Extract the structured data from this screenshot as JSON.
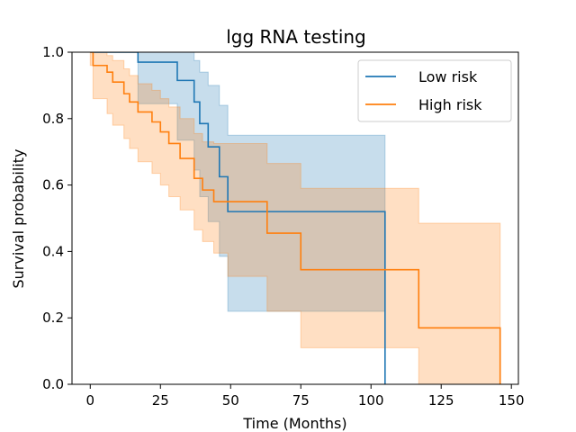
{
  "chart_data": {
    "type": "line",
    "title": "lgg RNA testing",
    "xlabel": "Time (Months)",
    "ylabel": "Survival probability",
    "xlim": [
      -6.5,
      152.5
    ],
    "ylim": [
      0,
      1.0
    ],
    "xticks": [
      0,
      25,
      50,
      75,
      100,
      125,
      150
    ],
    "yticks": [
      0.0,
      0.2,
      0.4,
      0.6,
      0.8,
      1.0
    ],
    "xtick_labels": [
      "0",
      "25",
      "50",
      "75",
      "100",
      "125",
      "150"
    ],
    "ytick_labels": [
      "0.0",
      "0.2",
      "0.4",
      "0.6",
      "0.8",
      "1.0"
    ],
    "legend_position": "top-right",
    "grid": false,
    "series": [
      {
        "name": "Low risk",
        "color": "#1f77b4",
        "steps": [
          [
            0,
            1.0
          ],
          [
            17,
            0.97
          ],
          [
            31,
            0.915
          ],
          [
            37,
            0.85
          ],
          [
            39,
            0.785
          ],
          [
            42,
            0.715
          ],
          [
            46,
            0.625
          ],
          [
            49,
            0.52
          ],
          [
            105,
            0.0
          ]
        ],
        "ci_lower": [
          [
            0,
            1.0
          ],
          [
            17,
            0.845
          ],
          [
            31,
            0.735
          ],
          [
            37,
            0.645
          ],
          [
            39,
            0.565
          ],
          [
            42,
            0.49
          ],
          [
            46,
            0.385
          ],
          [
            49,
            0.22
          ],
          [
            63,
            0.22
          ],
          [
            105,
            0.22
          ]
        ],
        "ci_upper": [
          [
            0,
            1.0
          ],
          [
            31,
            1.0
          ],
          [
            37,
            0.975
          ],
          [
            39,
            0.94
          ],
          [
            42,
            0.9
          ],
          [
            46,
            0.84
          ],
          [
            49,
            0.75
          ],
          [
            105,
            0.75
          ]
        ],
        "end_x": 105
      },
      {
        "name": "High risk",
        "color": "#ff7f0e",
        "steps": [
          [
            0,
            1.0
          ],
          [
            1,
            0.96
          ],
          [
            6,
            0.94
          ],
          [
            8,
            0.91
          ],
          [
            12,
            0.875
          ],
          [
            14,
            0.85
          ],
          [
            17,
            0.82
          ],
          [
            22,
            0.79
          ],
          [
            25,
            0.76
          ],
          [
            28,
            0.725
          ],
          [
            32,
            0.68
          ],
          [
            37,
            0.62
          ],
          [
            40,
            0.585
          ],
          [
            44,
            0.55
          ],
          [
            63,
            0.455
          ],
          [
            75,
            0.345
          ],
          [
            117,
            0.17
          ],
          [
            146,
            0.0
          ]
        ],
        "ci_lower": [
          [
            0,
            0.96
          ],
          [
            1,
            0.86
          ],
          [
            6,
            0.815
          ],
          [
            8,
            0.78
          ],
          [
            12,
            0.74
          ],
          [
            14,
            0.71
          ],
          [
            17,
            0.67
          ],
          [
            22,
            0.635
          ],
          [
            25,
            0.6
          ],
          [
            28,
            0.565
          ],
          [
            32,
            0.525
          ],
          [
            37,
            0.465
          ],
          [
            40,
            0.43
          ],
          [
            44,
            0.395
          ],
          [
            49,
            0.325
          ],
          [
            63,
            0.22
          ],
          [
            75,
            0.11
          ],
          [
            117,
            0.0
          ],
          [
            146,
            0.0
          ]
        ],
        "ci_upper": [
          [
            0,
            1.0
          ],
          [
            6,
            0.99
          ],
          [
            8,
            0.975
          ],
          [
            12,
            0.95
          ],
          [
            14,
            0.93
          ],
          [
            17,
            0.905
          ],
          [
            22,
            0.885
          ],
          [
            25,
            0.86
          ],
          [
            28,
            0.835
          ],
          [
            32,
            0.8
          ],
          [
            37,
            0.755
          ],
          [
            40,
            0.73
          ],
          [
            44,
            0.725
          ],
          [
            63,
            0.665
          ],
          [
            75,
            0.59
          ],
          [
            117,
            0.485
          ],
          [
            146,
            0.485
          ]
        ],
        "end_x": 146
      }
    ]
  }
}
